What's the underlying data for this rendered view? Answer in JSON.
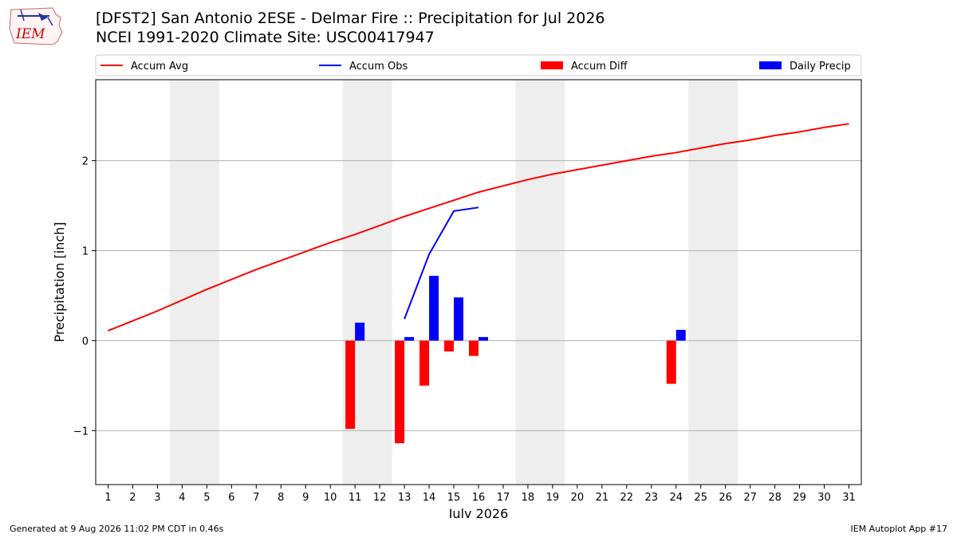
{
  "header": {
    "title_line1": "[DFST2] San Antonio 2ESE - Delmar Fire :: Precipitation for Jul 2026",
    "title_line2": "NCEI 1991-2020 Climate Site: USC00417947"
  },
  "logo": {
    "text": "IEM",
    "color": "#cc0000"
  },
  "footer": {
    "left": "Generated at 9 Aug 2026 11:02 PM CDT in 0.46s",
    "right": "IEM Autoplot App #17"
  },
  "chart_data": {
    "type": "bar",
    "xlabel": "July 2026",
    "ylabel": "Precipitation [inch]",
    "x": [
      1,
      2,
      3,
      4,
      5,
      6,
      7,
      8,
      9,
      10,
      11,
      12,
      13,
      14,
      15,
      16,
      17,
      18,
      19,
      20,
      21,
      22,
      23,
      24,
      25,
      26,
      27,
      28,
      29,
      30,
      31
    ],
    "xlim": [
      0.5,
      31.5
    ],
    "ylim": [
      -1.6,
      2.9
    ],
    "yticks": [
      -1,
      0,
      1,
      2
    ],
    "ytick_labels": [
      "−1",
      "0",
      "1",
      "2"
    ],
    "grid": "y",
    "weekend_shading": [
      [
        3.5,
        5.5
      ],
      [
        10.5,
        12.5
      ],
      [
        17.5,
        19.5
      ],
      [
        24.5,
        26.5
      ]
    ],
    "legend_position": "top",
    "series": [
      {
        "name": "Accum Avg",
        "kind": "line",
        "color": "#ff0000",
        "values": [
          0.11,
          0.22,
          0.33,
          0.45,
          0.57,
          0.68,
          0.79,
          0.89,
          0.99,
          1.09,
          1.18,
          1.28,
          1.38,
          1.47,
          1.56,
          1.65,
          1.72,
          1.79,
          1.85,
          1.9,
          1.95,
          2.0,
          2.05,
          2.09,
          2.14,
          2.19,
          2.23,
          2.28,
          2.32,
          2.37,
          2.41
        ]
      },
      {
        "name": "Accum Obs",
        "kind": "line",
        "color": "#0000ff",
        "values": [
          null,
          null,
          null,
          null,
          null,
          null,
          null,
          null,
          null,
          null,
          null,
          null,
          0.24,
          0.96,
          1.44,
          1.48,
          null,
          null,
          null,
          null,
          null,
          null,
          null,
          null,
          null,
          null,
          null,
          null,
          null,
          null,
          null
        ]
      },
      {
        "name": "Accum Diff",
        "kind": "bar",
        "color": "#ff0000",
        "values": [
          null,
          null,
          null,
          null,
          null,
          null,
          null,
          null,
          null,
          null,
          -0.98,
          null,
          -1.14,
          -0.5,
          -0.12,
          -0.17,
          null,
          null,
          null,
          null,
          null,
          null,
          null,
          -0.48,
          null,
          null,
          null,
          null,
          null,
          null,
          null
        ]
      },
      {
        "name": "Daily Precip",
        "kind": "bar",
        "color": "#0000ff",
        "values": [
          null,
          null,
          null,
          null,
          null,
          null,
          null,
          null,
          null,
          null,
          0.2,
          null,
          0.04,
          0.72,
          0.48,
          0.04,
          null,
          null,
          null,
          null,
          null,
          null,
          null,
          0.12,
          null,
          null,
          null,
          null,
          null,
          null,
          null
        ]
      }
    ]
  }
}
